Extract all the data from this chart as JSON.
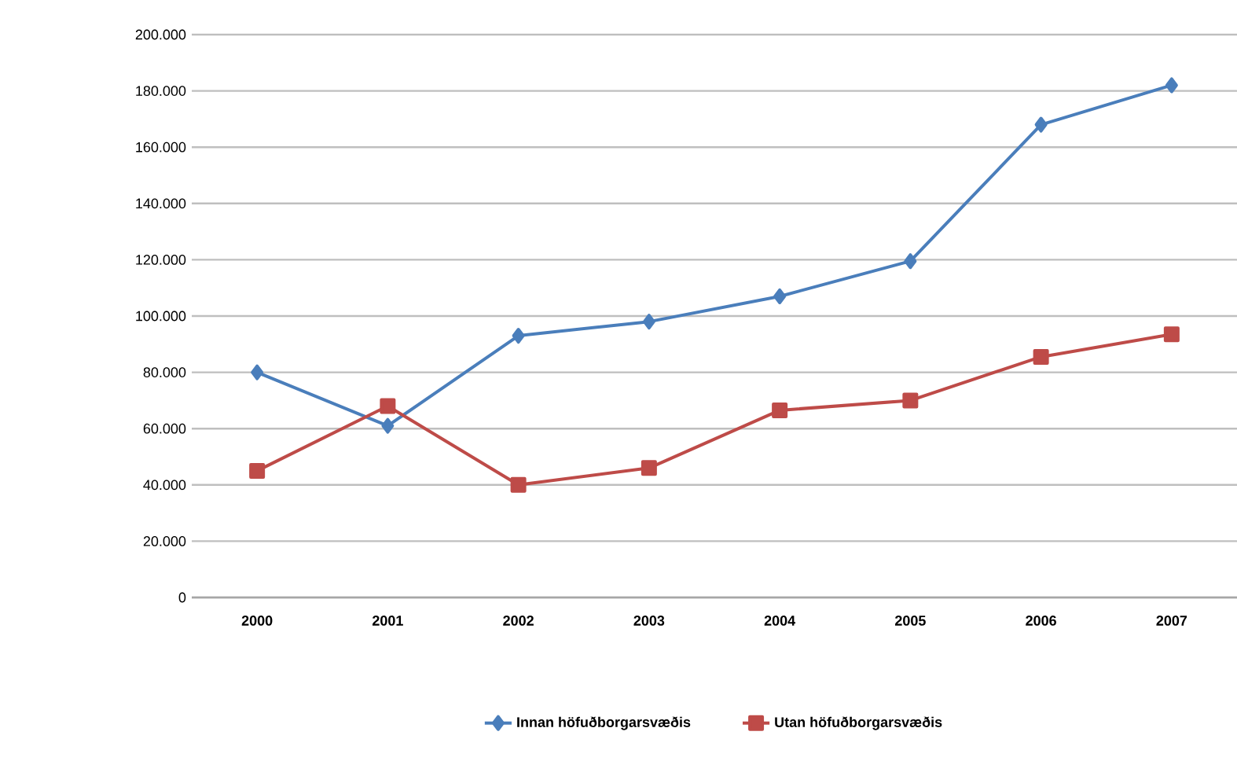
{
  "chart_data": {
    "type": "line",
    "categories": [
      "2000",
      "2001",
      "2002",
      "2003",
      "2004",
      "2005",
      "2006",
      "2007"
    ],
    "series": [
      {
        "name": "Innan höfuðborgarsvæðis",
        "color": "#4a7ebb",
        "marker": "diamond",
        "values": [
          80000,
          61000,
          93000,
          98000,
          107000,
          119500,
          168000,
          182000
        ]
      },
      {
        "name": "Utan höfuðborgarsvæðis",
        "color": "#be4b48",
        "marker": "square",
        "values": [
          45000,
          68000,
          40000,
          46000,
          66500,
          70000,
          85500,
          93500
        ]
      }
    ],
    "ylim": [
      0,
      200000
    ],
    "yticks": [
      {
        "value": 0,
        "label": "0"
      },
      {
        "value": 20000,
        "label": "20.000"
      },
      {
        "value": 40000,
        "label": "40.000"
      },
      {
        "value": 60000,
        "label": "60.000"
      },
      {
        "value": 80000,
        "label": "80.000"
      },
      {
        "value": 100000,
        "label": "100.000"
      },
      {
        "value": 120000,
        "label": "120.000"
      },
      {
        "value": 140000,
        "label": "140.000"
      },
      {
        "value": 160000,
        "label": "160.000"
      },
      {
        "value": 180000,
        "label": "180.000"
      },
      {
        "value": 200000,
        "label": "200.000"
      }
    ],
    "grid": "y",
    "legend": "bottom",
    "line_style": "solid"
  }
}
